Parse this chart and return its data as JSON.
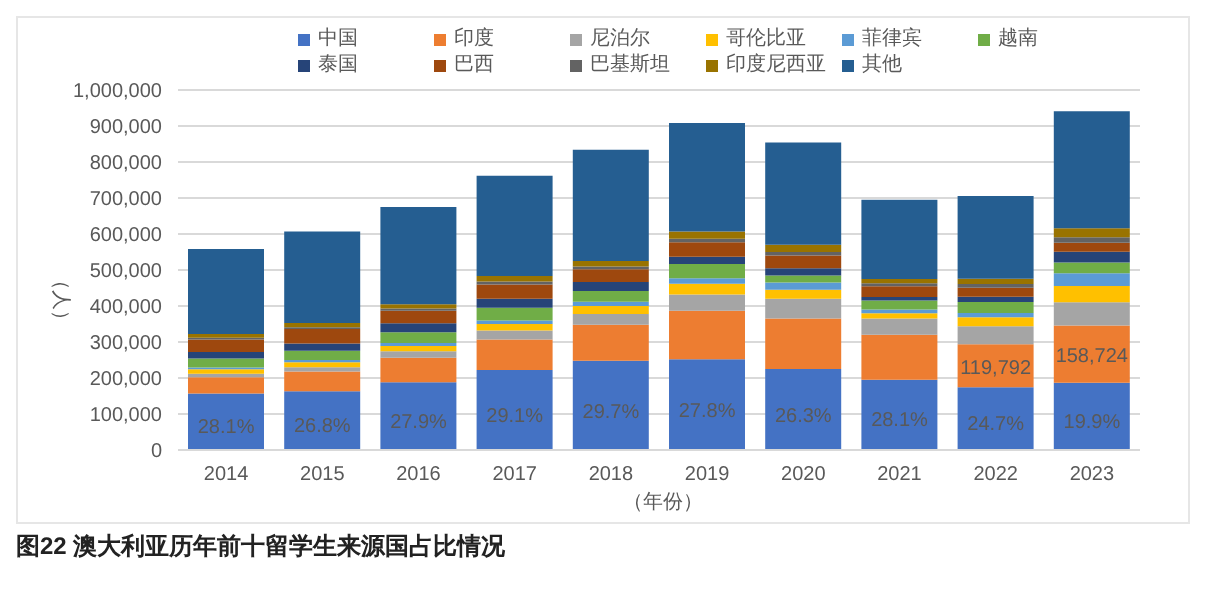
{
  "chart_data": {
    "type": "bar",
    "stacked": true,
    "categories": [
      "2014",
      "2015",
      "2016",
      "2017",
      "2018",
      "2019",
      "2020",
      "2021",
      "2022",
      "2023"
    ],
    "xlabel": "（年份）",
    "ylabel": "（人）",
    "ylim": [
      0,
      1000000
    ],
    "yticks": [
      0,
      {
        "value": 100000,
        "label": "100,000"
      },
      {
        "value": 200000,
        "label": "200,000"
      },
      {
        "value": 300000,
        "label": "300,000"
      },
      {
        "value": 400000,
        "label": "400,000"
      },
      {
        "value": 500000,
        "label": "500,000"
      },
      {
        "value": 600000,
        "label": "600,000"
      },
      {
        "value": 700000,
        "label": "700,000"
      },
      {
        "value": 800000,
        "label": "800,000"
      },
      {
        "value": 900000,
        "label": "900,000"
      },
      {
        "value": 1000000,
        "label": "1,000,000"
      }
    ],
    "grid": "y",
    "legend": "top",
    "annotations": [
      "图22 澳大利亚历年前十留学生来源国占比情况",
      {
        "text": "28.1%",
        "x": "2014",
        "y": 157000
      },
      {
        "text": "26.8%",
        "x": "2015",
        "y": 163000
      },
      {
        "text": "27.9%",
        "x": "2016",
        "y": 188000
      },
      {
        "text": "29.1%",
        "x": "2017",
        "y": 222000
      },
      {
        "text": "29.7%",
        "x": "2018",
        "y": 248000
      },
      {
        "text": "27.8%",
        "x": "2019",
        "y": 252000
      },
      {
        "text": "26.3%",
        "x": "2020",
        "y": 225000
      },
      {
        "text": "28.1%",
        "x": "2021",
        "y": 195000
      },
      {
        "text": "24.7%",
        "x": "2022",
        "y": 174000
      },
      {
        "text": "19.9%",
        "x": "2023",
        "y": 187000
      }
    ],
    "series": [
      {
        "name": "中国",
        "color": "#4472c4",
        "values": [
          157000,
          163000,
          188000,
          222000,
          248000,
          252000,
          225000,
          195000,
          174000,
          187000
        ]
      },
      {
        "name": "印度",
        "color": "#ed7d31",
        "values": [
          45000,
          55000,
          68000,
          85000,
          100000,
          135000,
          140000,
          125000,
          119792,
          158724
        ],
        "value_labels": [
          null,
          null,
          null,
          null,
          null,
          null,
          null,
          null,
          "119,792",
          "158,724"
        ]
      },
      {
        "name": "尼泊尔",
        "color": "#a5a5a5",
        "values": [
          10000,
          12000,
          18000,
          25000,
          30000,
          45000,
          55000,
          45000,
          50000,
          65000
        ]
      },
      {
        "name": "哥伦比亚",
        "color": "#ffc000",
        "values": [
          12000,
          14000,
          15000,
          18000,
          22000,
          30000,
          25000,
          15000,
          25000,
          45000
        ]
      },
      {
        "name": "菲律宾",
        "color": "#5b9bd5",
        "values": [
          5000,
          6000,
          8000,
          10000,
          12000,
          15000,
          20000,
          10000,
          12000,
          35000
        ]
      },
      {
        "name": "越南",
        "color": "#70ad47",
        "values": [
          25000,
          26000,
          30000,
          35000,
          30000,
          40000,
          20000,
          25000,
          30000,
          30000
        ]
      },
      {
        "name": "泰国",
        "color": "#264478",
        "values": [
          18000,
          20000,
          25000,
          25000,
          25000,
          20000,
          20000,
          10000,
          15000,
          30000
        ]
      },
      {
        "name": "巴西",
        "color": "#9e480e",
        "values": [
          35000,
          40000,
          35000,
          40000,
          35000,
          40000,
          35000,
          30000,
          25000,
          25000
        ]
      },
      {
        "name": "巴基斯坦",
        "color": "#636363",
        "values": [
          5000,
          5000,
          6000,
          8000,
          8000,
          10000,
          10000,
          8000,
          10000,
          15000
        ]
      },
      {
        "name": "印度尼西亚",
        "color": "#997300",
        "values": [
          10000,
          12000,
          12000,
          15000,
          15000,
          20000,
          20000,
          12000,
          15000,
          25000
        ]
      },
      {
        "name": "其他",
        "color": "#255e91",
        "values": [
          236000,
          254000,
          270000,
          279000,
          309000,
          301000,
          284000,
          220000,
          230000,
          325000
        ]
      }
    ]
  }
}
